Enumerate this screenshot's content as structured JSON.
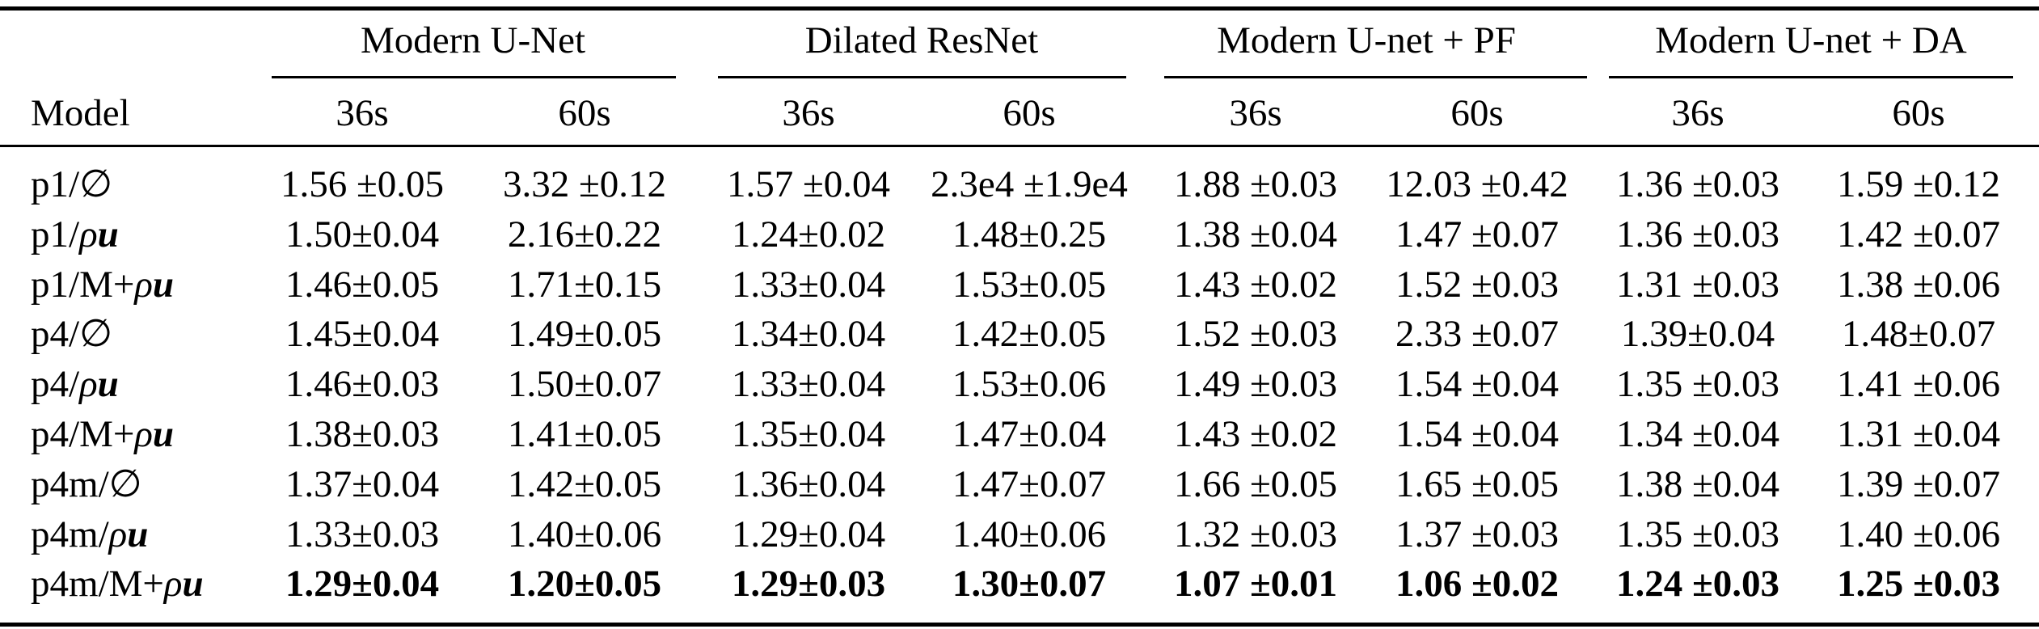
{
  "table": {
    "model_header": "Model",
    "model_groups": [
      "Modern U-Net",
      "Dilated ResNet",
      "Modern U-net + PF",
      "Modern U-net + DA"
    ],
    "sub_headers": [
      "36s",
      "60s",
      "36s",
      "60s",
      "36s",
      "60s",
      "36s",
      "60s"
    ],
    "rows": [
      {
        "group": "p1",
        "variant": "∅",
        "cells": [
          "1.56 ±0.05",
          "3.32 ±0.12",
          "1.57 ±0.04",
          "2.3e4 ±1.9e4",
          "1.88 ±0.03",
          "12.03 ±0.42",
          "1.36 ±0.03",
          "1.59 ±0.12"
        ]
      },
      {
        "group": "p1",
        "variant": "ρu",
        "cells": [
          "1.50±0.04",
          "2.16±0.22",
          "1.24±0.02",
          "1.48±0.25",
          "1.38 ±0.04",
          "1.47 ±0.07",
          "1.36 ±0.03",
          "1.42 ±0.07"
        ]
      },
      {
        "group": "p1",
        "variant": "M+ρu",
        "cells": [
          "1.46±0.05",
          "1.71±0.15",
          "1.33±0.04",
          "1.53±0.05",
          "1.43 ±0.02",
          "1.52 ±0.03",
          "1.31 ±0.03",
          "1.38 ±0.06"
        ]
      },
      {
        "group": "p4",
        "variant": "∅",
        "cells": [
          "1.45±0.04",
          "1.49±0.05",
          "1.34±0.04",
          "1.42±0.05",
          "1.52 ±0.03",
          "2.33 ±0.07",
          "1.39±0.04",
          "1.48±0.07"
        ]
      },
      {
        "group": "p4",
        "variant": "ρu",
        "cells": [
          "1.46±0.03",
          "1.50±0.07",
          "1.33±0.04",
          "1.53±0.06",
          "1.49 ±0.03",
          "1.54 ±0.04",
          "1.35 ±0.03",
          "1.41 ±0.06"
        ]
      },
      {
        "group": "p4",
        "variant": "M+ρu",
        "cells": [
          "1.38±0.03",
          "1.41±0.05",
          "1.35±0.04",
          "1.47±0.04",
          "1.43 ±0.02",
          "1.54 ±0.04",
          "1.34 ±0.04",
          "1.31 ±0.04"
        ]
      },
      {
        "group": "p4m",
        "variant": "∅",
        "cells": [
          "1.37±0.04",
          "1.42±0.05",
          "1.36±0.04",
          "1.47±0.07",
          "1.66 ±0.05",
          "1.65 ±0.05",
          "1.38 ±0.04",
          "1.39 ±0.07"
        ]
      },
      {
        "group": "p4m",
        "variant": "ρu",
        "cells": [
          "1.33±0.03",
          "1.40±0.06",
          "1.29±0.04",
          "1.40±0.06",
          "1.32 ±0.03",
          "1.37 ±0.03",
          "1.35 ±0.03",
          "1.40 ±0.06"
        ]
      },
      {
        "group": "p4m",
        "variant": "M+ρu",
        "cells": [
          "1.29±0.04",
          "1.20±0.05",
          "1.29±0.03",
          "1.30±0.07",
          "1.07 ±0.01",
          "1.06 ±0.02",
          "1.24 ±0.03",
          "1.25 ±0.03"
        ]
      }
    ]
  }
}
